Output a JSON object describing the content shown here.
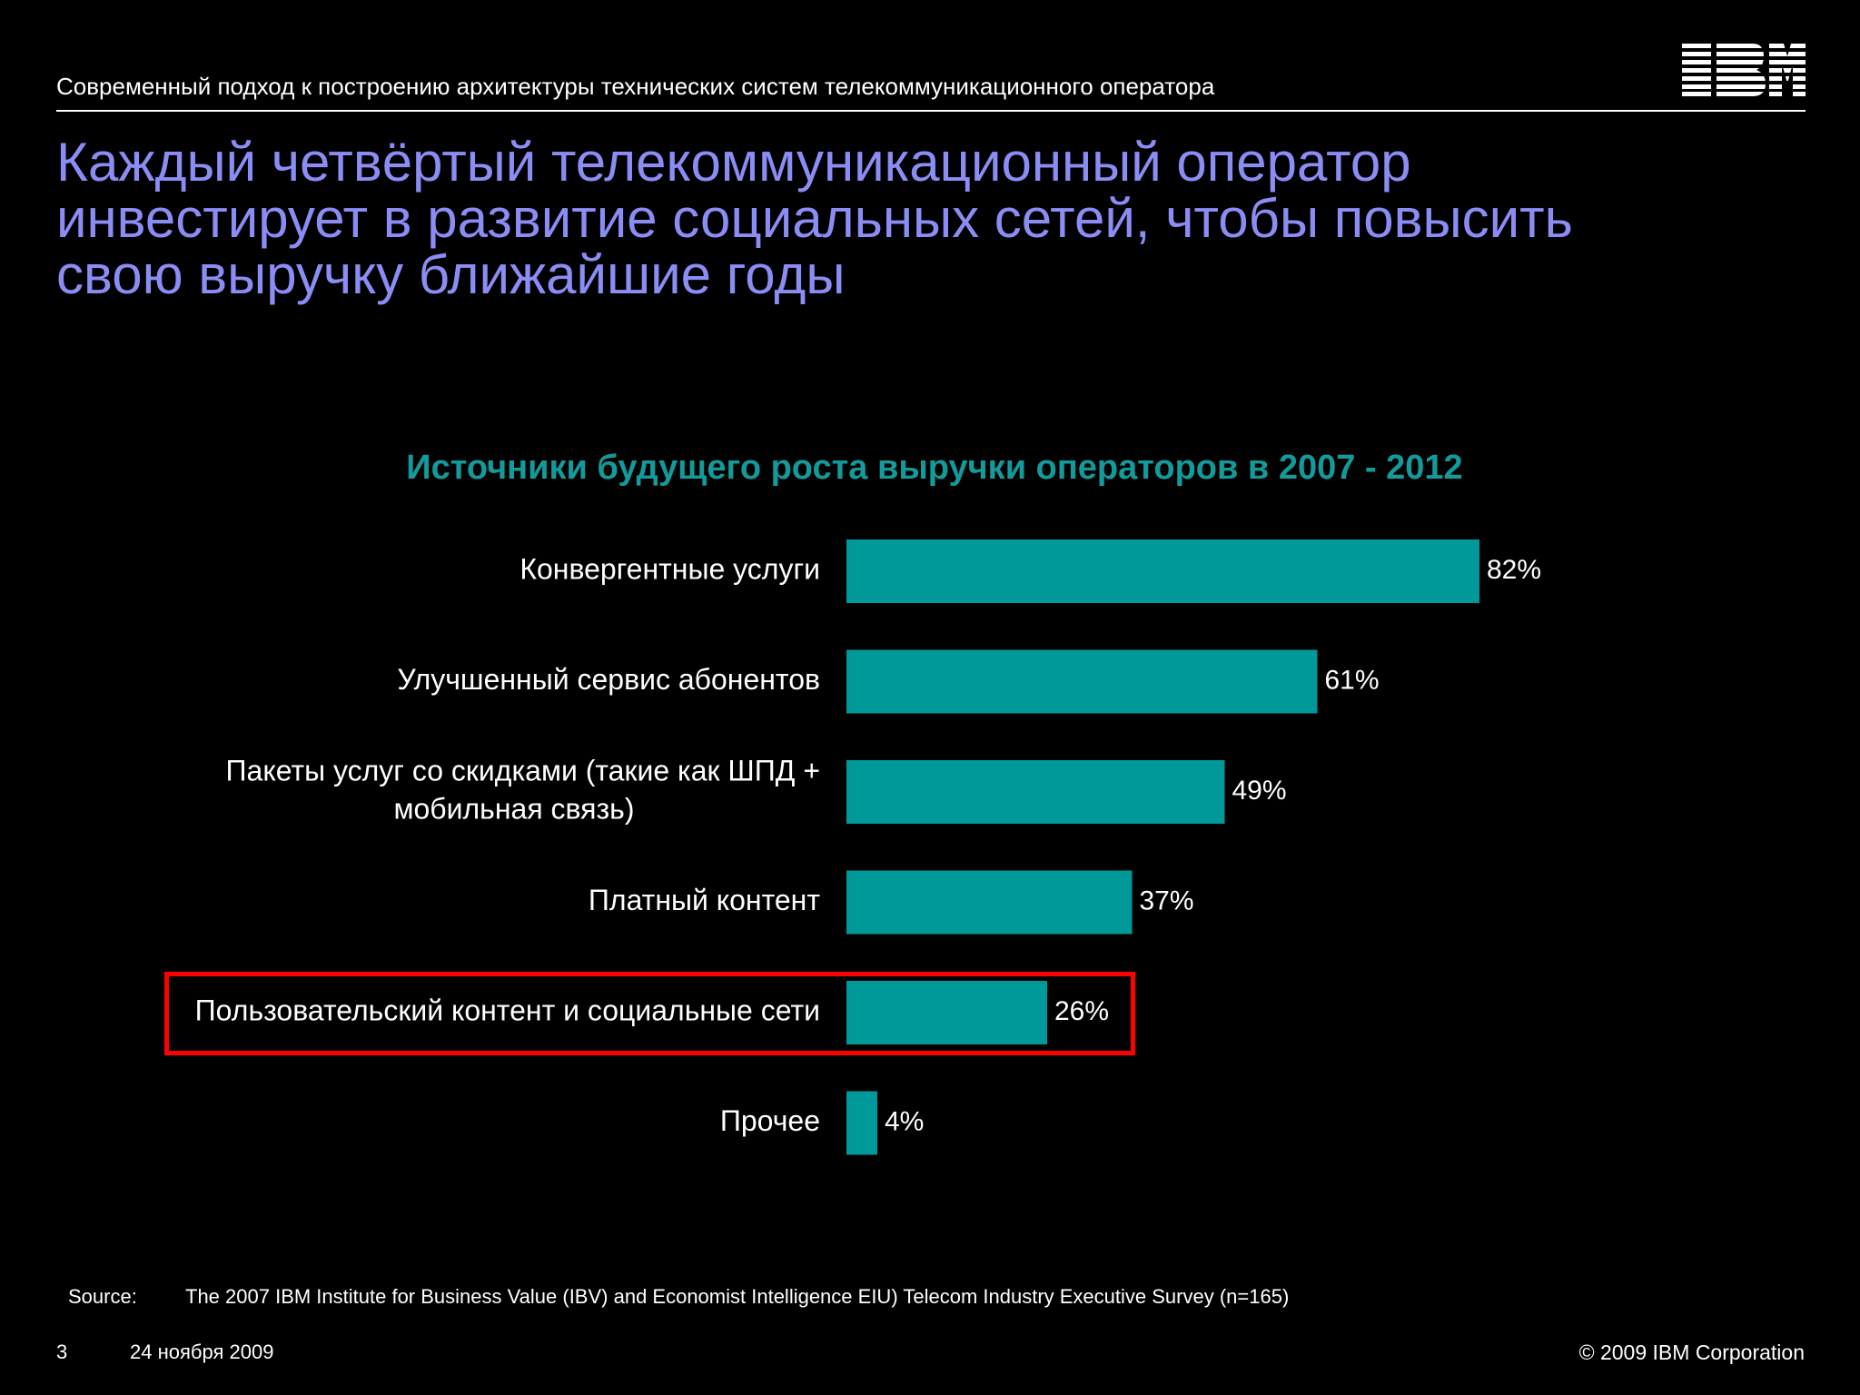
{
  "header": {
    "subtitle": "Современный подход к построению архитектуры технических систем телекоммуникационного оператора",
    "logo_text": "IBM"
  },
  "slide": {
    "title_lines": [
      "Каждый четвёртый телекоммуникационный оператор",
      "инвестирует в развитие социальных сетей, чтобы повысить",
      "свою выручку ближайшие годы"
    ]
  },
  "chart_data": {
    "type": "bar",
    "orientation": "horizontal",
    "title": "Источники будущего роста выручки операторов в 2007 - 2012",
    "categories": [
      [
        "Конвергентные услуги"
      ],
      [
        "Улучшенный сервис абонентов"
      ],
      [
        "Пакеты услуг со скидками    (такие как ШПД +",
        "мобильная связь)"
      ],
      [
        "Платный контент"
      ],
      [
        "Пользовательский контент и социальные сети"
      ],
      [
        "Прочее"
      ]
    ],
    "values": [
      82,
      61,
      49,
      37,
      26,
      4
    ],
    "value_labels": [
      "82%",
      "61%",
      "49%",
      "37%",
      "26%",
      "4%"
    ],
    "unit": "%",
    "xlim": [
      0,
      100
    ],
    "highlighted_index": 4,
    "bar_color": "#009999",
    "highlight_color": "#ff0000"
  },
  "footer": {
    "source_label": "Source:",
    "source_text": "The 2007 IBM Institute for Business Value (IBV)  and Economist Intelligence EIU) Telecom Industry Executive Survey (n=165)",
    "page_number": "3",
    "date": "24 ноября 2009",
    "copyright": "© 2009 IBM Corporation"
  }
}
